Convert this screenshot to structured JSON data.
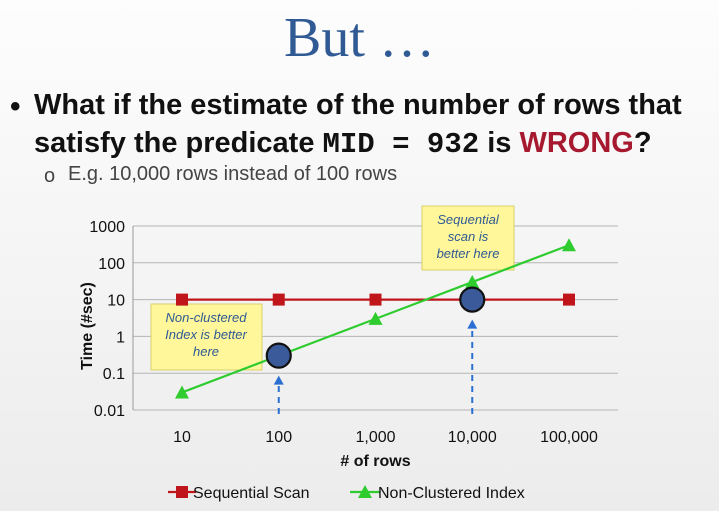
{
  "slide": {
    "title": "But …",
    "bullet_marker": "•",
    "bullet_part1": "What if the estimate of the number of rows that satisfy the predicate ",
    "bullet_code": "MID = 932",
    "bullet_part2": " is ",
    "bullet_wrong": "WRONG",
    "bullet_end": "?",
    "sub_marker": "o",
    "sub_bullet": "E.g. 10,000 rows instead of 100 rows"
  },
  "colors": {
    "title": "#2f5a93",
    "wrong": "#a6192e",
    "sequential": "#c0151b",
    "nonclustered": "#2ecc2e",
    "marker_fill": "#3a5a9a",
    "arrow": "#2a6fd1",
    "callout_bg": "#fff79a"
  },
  "chart_data": {
    "type": "line",
    "x_scale": "log",
    "y_scale": "log",
    "xlabel": "# of rows",
    "ylabel": "Time (#sec)",
    "x": [
      10,
      100,
      1000,
      10000,
      100000
    ],
    "x_tick_labels": [
      "10",
      "100",
      "1,000",
      "10,000",
      "100,000"
    ],
    "y_ticks": [
      0.01,
      0.1,
      1,
      10,
      100,
      1000
    ],
    "y_tick_labels": [
      "0.01",
      "0.1",
      "1",
      "10",
      "100",
      "1000"
    ],
    "ylim": [
      0.01,
      1000
    ],
    "grid": true,
    "legend_position": "bottom",
    "series": [
      {
        "name": "Sequential Scan",
        "values": [
          10,
          10,
          10,
          10,
          10
        ]
      },
      {
        "name": "Non-Clustered Index",
        "values": [
          0.03,
          0.3,
          3,
          30,
          300
        ]
      }
    ],
    "highlight_points": [
      {
        "x": 100,
        "y": 0.3
      },
      {
        "x": 10000,
        "y": 10
      }
    ],
    "annotations": [
      {
        "text_lines": [
          "Non-clustered",
          "Index is better",
          "here"
        ],
        "points_to_x": 100
      },
      {
        "text_lines": [
          "Sequential",
          "scan is",
          "better here"
        ],
        "points_to_x": 10000
      }
    ]
  }
}
